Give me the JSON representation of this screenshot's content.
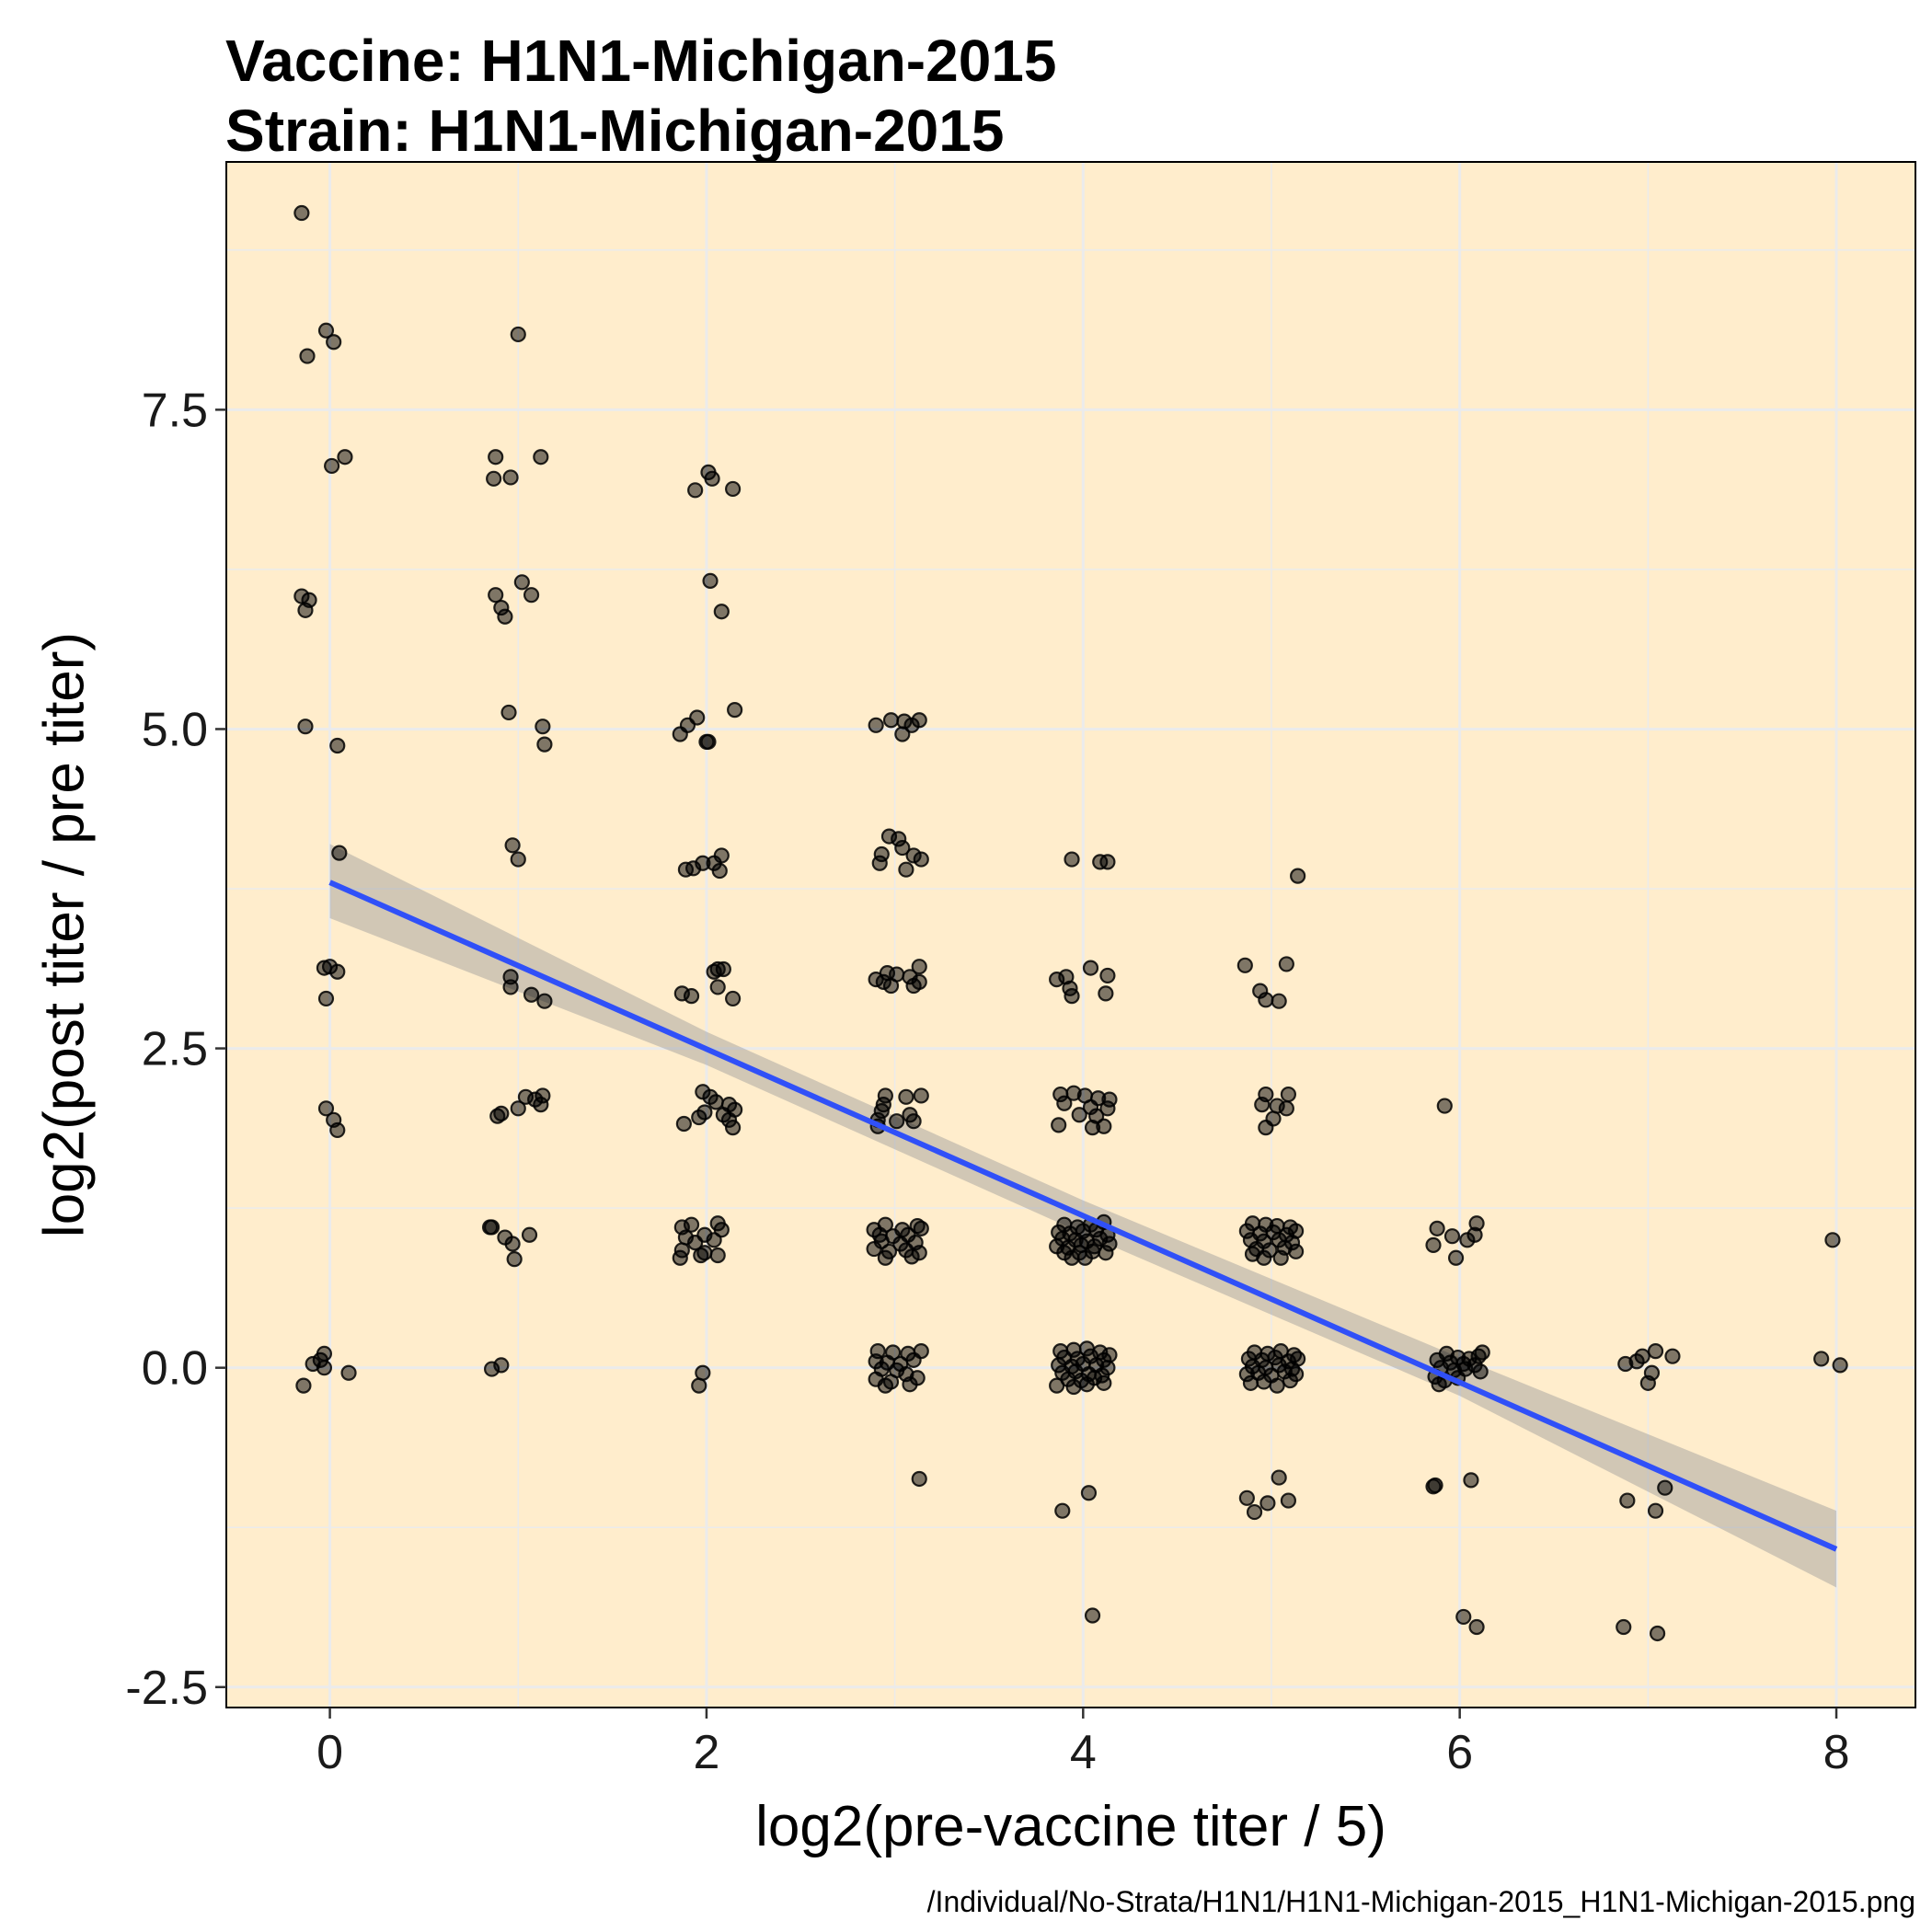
{
  "title_lines": [
    "Vaccine: H1N1-Michigan-2015",
    "Strain: H1N1-Michigan-2015"
  ],
  "caption": "/Individual/No-Strata/H1N1/H1N1-Michigan-2015_H1N1-Michigan-2015.png",
  "colors": {
    "panel_bg": "#FFEDCC",
    "grid": "#EBEBEB",
    "point": "#000000",
    "fit_line": "#3050F8",
    "ribbon": "#999999"
  },
  "chart_data": {
    "type": "scatter",
    "xlabel": "log2(pre-vaccine titer / 5)",
    "ylabel": "log2(post titer / pre titer)",
    "xlim": [
      -0.55,
      8.42
    ],
    "ylim": [
      -2.66,
      9.44
    ],
    "x_ticks": [
      0,
      2,
      4,
      6,
      8
    ],
    "x_tick_labels": [
      "0",
      "2",
      "4",
      "6",
      "8"
    ],
    "y_ticks": [
      -2.5,
      0,
      2.5,
      5,
      7.5
    ],
    "y_tick_labels": [
      "-2.5",
      "0.0",
      "2.5",
      "5.0",
      "7.5"
    ],
    "grid": true,
    "legend": "none",
    "points": [
      [
        -0.15,
        9.04
      ],
      [
        -0.12,
        7.92
      ],
      [
        -0.02,
        8.12
      ],
      [
        0.02,
        8.03
      ],
      [
        0.08,
        7.13
      ],
      [
        0.01,
        7.06
      ],
      [
        -0.15,
        6.04
      ],
      [
        -0.11,
        6.01
      ],
      [
        -0.13,
        5.93
      ],
      [
        -0.13,
        5.02
      ],
      [
        0.04,
        4.87
      ],
      [
        0.05,
        4.03
      ],
      [
        -0.03,
        3.13
      ],
      [
        0.0,
        3.14
      ],
      [
        0.04,
        3.1
      ],
      [
        -0.02,
        2.89
      ],
      [
        -0.02,
        2.03
      ],
      [
        0.02,
        1.94
      ],
      [
        0.04,
        1.86
      ],
      [
        -0.03,
        0.11
      ],
      [
        -0.05,
        0.06
      ],
      [
        -0.09,
        0.03
      ],
      [
        -0.03,
        0.0
      ],
      [
        0.1,
        -0.04
      ],
      [
        -0.14,
        -0.14
      ],
      [
        1.0,
        8.09
      ],
      [
        0.88,
        7.13
      ],
      [
        1.12,
        7.13
      ],
      [
        0.87,
        6.96
      ],
      [
        0.96,
        6.97
      ],
      [
        1.02,
        6.15
      ],
      [
        0.88,
        6.05
      ],
      [
        1.07,
        6.05
      ],
      [
        0.91,
        5.95
      ],
      [
        0.93,
        5.88
      ],
      [
        0.95,
        5.13
      ],
      [
        1.13,
        5.02
      ],
      [
        1.14,
        4.88
      ],
      [
        0.97,
        4.09
      ],
      [
        1.0,
        3.98
      ],
      [
        0.96,
        3.06
      ],
      [
        0.96,
        2.98
      ],
      [
        1.07,
        2.92
      ],
      [
        1.14,
        2.87
      ],
      [
        1.13,
        2.13
      ],
      [
        1.04,
        2.12
      ],
      [
        1.09,
        2.1
      ],
      [
        1.12,
        2.06
      ],
      [
        1.0,
        2.03
      ],
      [
        0.91,
        1.99
      ],
      [
        0.89,
        1.97
      ],
      [
        0.85,
        1.1
      ],
      [
        0.86,
        1.1
      ],
      [
        0.93,
        1.02
      ],
      [
        1.06,
        1.04
      ],
      [
        0.97,
        0.97
      ],
      [
        0.98,
        0.85
      ],
      [
        0.91,
        0.02
      ],
      [
        0.86,
        -0.01
      ],
      [
        2.01,
        7.01
      ],
      [
        2.03,
        6.96
      ],
      [
        1.94,
        6.87
      ],
      [
        2.14,
        6.88
      ],
      [
        2.02,
        6.16
      ],
      [
        2.08,
        5.92
      ],
      [
        2.15,
        5.15
      ],
      [
        1.95,
        5.09
      ],
      [
        1.9,
        5.03
      ],
      [
        1.86,
        4.96
      ],
      [
        2.01,
        4.9
      ],
      [
        2.0,
        4.9
      ],
      [
        2.08,
        4.01
      ],
      [
        2.04,
        3.95
      ],
      [
        1.98,
        3.95
      ],
      [
        1.93,
        3.91
      ],
      [
        1.89,
        3.9
      ],
      [
        2.07,
        3.89
      ],
      [
        2.06,
        3.12
      ],
      [
        2.09,
        3.12
      ],
      [
        2.04,
        3.1
      ],
      [
        2.06,
        2.98
      ],
      [
        1.87,
        2.93
      ],
      [
        1.92,
        2.91
      ],
      [
        2.14,
        2.89
      ],
      [
        1.98,
        2.16
      ],
      [
        2.02,
        2.12
      ],
      [
        2.05,
        2.08
      ],
      [
        2.12,
        2.06
      ],
      [
        2.15,
        2.02
      ],
      [
        1.99,
        2.0
      ],
      [
        2.09,
        1.98
      ],
      [
        2.12,
        1.94
      ],
      [
        1.96,
        1.96
      ],
      [
        1.88,
        1.91
      ],
      [
        2.14,
        1.88
      ],
      [
        1.87,
        1.1
      ],
      [
        1.92,
        1.12
      ],
      [
        2.06,
        1.13
      ],
      [
        2.08,
        1.08
      ],
      [
        1.99,
        1.04
      ],
      [
        1.89,
        1.02
      ],
      [
        2.04,
        1.0
      ],
      [
        1.94,
        0.98
      ],
      [
        1.87,
        0.92
      ],
      [
        1.99,
        0.9
      ],
      [
        2.06,
        0.88
      ],
      [
        1.86,
        0.86
      ],
      [
        1.97,
        0.88
      ],
      [
        1.98,
        -0.04
      ],
      [
        1.96,
        -0.14
      ],
      [
        2.9,
        5.03
      ],
      [
        2.98,
        5.07
      ],
      [
        3.05,
        5.06
      ],
      [
        3.13,
        5.07
      ],
      [
        3.09,
        5.03
      ],
      [
        3.04,
        4.96
      ],
      [
        2.97,
        4.16
      ],
      [
        3.02,
        4.14
      ],
      [
        3.04,
        4.07
      ],
      [
        2.93,
        4.02
      ],
      [
        3.1,
        4.01
      ],
      [
        3.14,
        3.98
      ],
      [
        2.92,
        3.95
      ],
      [
        3.06,
        3.9
      ],
      [
        3.13,
        3.14
      ],
      [
        2.96,
        3.09
      ],
      [
        3.01,
        3.08
      ],
      [
        3.08,
        3.06
      ],
      [
        2.9,
        3.04
      ],
      [
        2.94,
        3.02
      ],
      [
        3.13,
        3.02
      ],
      [
        2.98,
        2.99
      ],
      [
        3.1,
        2.99
      ],
      [
        2.95,
        2.13
      ],
      [
        3.06,
        2.12
      ],
      [
        3.14,
        2.13
      ],
      [
        2.94,
        2.06
      ],
      [
        2.93,
        2.01
      ],
      [
        3.08,
        1.98
      ],
      [
        2.91,
        1.94
      ],
      [
        3.01,
        1.93
      ],
      [
        3.1,
        1.93
      ],
      [
        2.91,
        1.89
      ],
      [
        3.12,
        1.11
      ],
      [
        2.95,
        1.12
      ],
      [
        2.89,
        1.08
      ],
      [
        3.04,
        1.08
      ],
      [
        3.14,
        1.09
      ],
      [
        2.92,
        1.04
      ],
      [
        2.99,
        1.03
      ],
      [
        3.07,
        1.04
      ],
      [
        2.93,
        0.99
      ],
      [
        3.03,
        0.97
      ],
      [
        3.11,
        0.98
      ],
      [
        2.89,
        0.93
      ],
      [
        2.97,
        0.91
      ],
      [
        3.06,
        0.92
      ],
      [
        3.13,
        0.9
      ],
      [
        2.95,
        0.86
      ],
      [
        3.09,
        0.87
      ],
      [
        2.91,
        0.13
      ],
      [
        2.99,
        0.12
      ],
      [
        3.07,
        0.11
      ],
      [
        3.14,
        0.13
      ],
      [
        2.9,
        0.05
      ],
      [
        2.96,
        0.04
      ],
      [
        3.03,
        0.03
      ],
      [
        3.1,
        0.06
      ],
      [
        2.93,
        -0.01
      ],
      [
        3.01,
        -0.02
      ],
      [
        3.06,
        -0.05
      ],
      [
        2.9,
        -0.09
      ],
      [
        2.98,
        -0.11
      ],
      [
        3.12,
        -0.08
      ],
      [
        2.95,
        -0.14
      ],
      [
        3.08,
        -0.13
      ],
      [
        3.13,
        -0.87
      ],
      [
        3.94,
        3.98
      ],
      [
        4.09,
        3.96
      ],
      [
        4.13,
        3.96
      ],
      [
        4.04,
        3.13
      ],
      [
        3.86,
        3.04
      ],
      [
        3.91,
        3.06
      ],
      [
        4.13,
        3.07
      ],
      [
        3.93,
        2.97
      ],
      [
        3.94,
        2.91
      ],
      [
        4.12,
        2.93
      ],
      [
        3.88,
        2.14
      ],
      [
        3.95,
        2.15
      ],
      [
        4.01,
        2.13
      ],
      [
        4.08,
        2.11
      ],
      [
        4.14,
        2.1
      ],
      [
        3.9,
        2.07
      ],
      [
        4.04,
        2.04
      ],
      [
        4.13,
        2.03
      ],
      [
        3.98,
        1.98
      ],
      [
        4.07,
        1.97
      ],
      [
        3.87,
        1.9
      ],
      [
        4.05,
        1.88
      ],
      [
        4.11,
        1.89
      ],
      [
        3.9,
        1.12
      ],
      [
        3.97,
        1.1
      ],
      [
        4.04,
        1.12
      ],
      [
        4.11,
        1.14
      ],
      [
        3.87,
        1.06
      ],
      [
        3.93,
        1.05
      ],
      [
        4.0,
        1.07
      ],
      [
        4.07,
        1.08
      ],
      [
        4.13,
        1.04
      ],
      [
        3.89,
        1.01
      ],
      [
        3.96,
        1.0
      ],
      [
        4.02,
        0.99
      ],
      [
        4.09,
        1.01
      ],
      [
        3.86,
        0.95
      ],
      [
        3.92,
        0.94
      ],
      [
        3.99,
        0.96
      ],
      [
        4.06,
        0.95
      ],
      [
        4.14,
        0.97
      ],
      [
        3.9,
        0.9
      ],
      [
        3.98,
        0.9
      ],
      [
        4.05,
        0.91
      ],
      [
        4.12,
        0.9
      ],
      [
        3.94,
        0.86
      ],
      [
        4.01,
        0.86
      ],
      [
        3.88,
        0.13
      ],
      [
        3.95,
        0.14
      ],
      [
        4.02,
        0.15
      ],
      [
        4.09,
        0.12
      ],
      [
        3.9,
        0.08
      ],
      [
        3.97,
        0.07
      ],
      [
        4.04,
        0.09
      ],
      [
        4.11,
        0.06
      ],
      [
        4.14,
        0.1
      ],
      [
        3.87,
        0.02
      ],
      [
        3.94,
        0.01
      ],
      [
        4.0,
        0.03
      ],
      [
        4.07,
        0.02
      ],
      [
        4.13,
        0.0
      ],
      [
        3.89,
        -0.04
      ],
      [
        3.96,
        -0.03
      ],
      [
        4.03,
        -0.05
      ],
      [
        4.1,
        -0.06
      ],
      [
        3.92,
        -0.09
      ],
      [
        3.99,
        -0.1
      ],
      [
        4.06,
        -0.08
      ],
      [
        3.86,
        -0.14
      ],
      [
        3.95,
        -0.15
      ],
      [
        4.02,
        -0.13
      ],
      [
        4.11,
        -0.12
      ],
      [
        3.89,
        -1.12
      ],
      [
        4.03,
        -0.98
      ],
      [
        4.05,
        -1.94
      ],
      [
        5.14,
        3.85
      ],
      [
        4.86,
        3.15
      ],
      [
        5.08,
        3.16
      ],
      [
        4.94,
        2.95
      ],
      [
        4.97,
        2.88
      ],
      [
        5.04,
        2.87
      ],
      [
        4.97,
        2.14
      ],
      [
        5.09,
        2.14
      ],
      [
        4.95,
        2.06
      ],
      [
        5.03,
        2.05
      ],
      [
        5.08,
        2.03
      ],
      [
        5.01,
        1.95
      ],
      [
        4.97,
        1.88
      ],
      [
        4.9,
        1.13
      ],
      [
        4.97,
        1.12
      ],
      [
        5.03,
        1.11
      ],
      [
        5.1,
        1.1
      ],
      [
        4.87,
        1.07
      ],
      [
        4.94,
        1.05
      ],
      [
        5.01,
        1.06
      ],
      [
        5.08,
        1.04
      ],
      [
        5.13,
        1.07
      ],
      [
        4.89,
        1.0
      ],
      [
        4.96,
        0.99
      ],
      [
        5.04,
        1.0
      ],
      [
        5.11,
        0.98
      ],
      [
        4.92,
        0.93
      ],
      [
        4.99,
        0.92
      ],
      [
        5.07,
        0.94
      ],
      [
        4.9,
        0.89
      ],
      [
        5.13,
        0.91
      ],
      [
        4.96,
        0.86
      ],
      [
        5.05,
        0.86
      ],
      [
        4.91,
        0.12
      ],
      [
        4.98,
        0.11
      ],
      [
        5.05,
        0.13
      ],
      [
        5.12,
        0.1
      ],
      [
        4.88,
        0.07
      ],
      [
        4.95,
        0.06
      ],
      [
        5.02,
        0.08
      ],
      [
        5.09,
        0.05
      ],
      [
        5.14,
        0.07
      ],
      [
        4.9,
        0.01
      ],
      [
        4.97,
        0.0
      ],
      [
        5.04,
        0.02
      ],
      [
        5.11,
        -0.01
      ],
      [
        4.87,
        -0.05
      ],
      [
        4.93,
        -0.04
      ],
      [
        5.0,
        -0.06
      ],
      [
        5.07,
        -0.03
      ],
      [
        5.13,
        -0.05
      ],
      [
        4.89,
        -0.12
      ],
      [
        4.96,
        -0.11
      ],
      [
        5.03,
        -0.14
      ],
      [
        5.1,
        -0.1
      ],
      [
        5.04,
        -0.86
      ],
      [
        4.87,
        -1.02
      ],
      [
        4.98,
        -1.06
      ],
      [
        5.09,
        -1.04
      ],
      [
        4.91,
        -1.13
      ],
      [
        5.92,
        2.05
      ],
      [
        5.88,
        1.09
      ],
      [
        5.96,
        1.03
      ],
      [
        6.04,
        1.0
      ],
      [
        6.08,
        1.04
      ],
      [
        6.09,
        1.13
      ],
      [
        5.86,
        0.96
      ],
      [
        5.98,
        0.86
      ],
      [
        6.12,
        0.12
      ],
      [
        5.93,
        0.11
      ],
      [
        5.99,
        0.08
      ],
      [
        6.05,
        0.07
      ],
      [
        6.1,
        0.09
      ],
      [
        5.88,
        0.06
      ],
      [
        5.95,
        0.04
      ],
      [
        6.02,
        0.03
      ],
      [
        6.08,
        0.02
      ],
      [
        5.9,
        0.0
      ],
      [
        5.97,
        -0.02
      ],
      [
        6.03,
        -0.01
      ],
      [
        6.11,
        -0.03
      ],
      [
        5.87,
        -0.07
      ],
      [
        5.92,
        -0.1
      ],
      [
        5.99,
        -0.08
      ],
      [
        5.89,
        -0.13
      ],
      [
        5.87,
        -0.92
      ],
      [
        5.86,
        -0.93
      ],
      [
        6.06,
        -0.88
      ],
      [
        6.02,
        -1.95
      ],
      [
        6.09,
        -2.03
      ],
      [
        6.88,
        0.03
      ],
      [
        6.94,
        0.05
      ],
      [
        6.97,
        0.09
      ],
      [
        7.04,
        0.13
      ],
      [
        7.13,
        0.09
      ],
      [
        7.02,
        -0.04
      ],
      [
        7.0,
        -0.12
      ],
      [
        7.09,
        -0.94
      ],
      [
        6.89,
        -1.04
      ],
      [
        7.04,
        -1.12
      ],
      [
        6.87,
        -2.03
      ],
      [
        7.05,
        -2.08
      ],
      [
        7.98,
        1.0
      ],
      [
        7.92,
        0.07
      ],
      [
        8.02,
        0.02
      ]
    ],
    "fit": {
      "x": [
        0,
        8
      ],
      "y": [
        3.8,
        -1.42
      ],
      "ribbon_x": [
        0,
        2,
        4,
        6,
        8
      ],
      "ribbon_lower": [
        3.52,
        2.37,
        1.05,
        -0.22,
        -1.72
      ],
      "ribbon_upper": [
        4.1,
        2.63,
        1.31,
        0.08,
        -1.12
      ]
    }
  }
}
